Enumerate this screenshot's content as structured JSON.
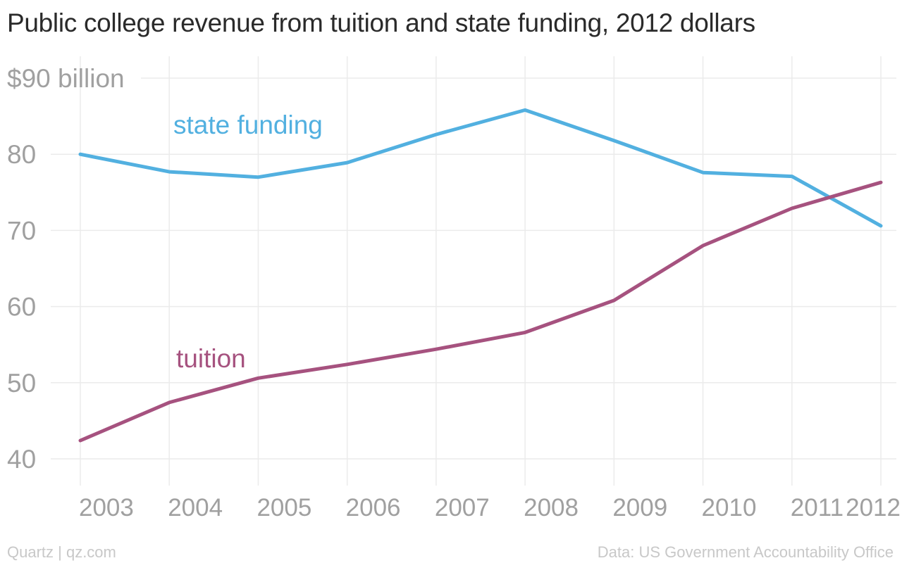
{
  "chart_data": {
    "type": "line",
    "title": "Public college revenue from tuition and state funding, 2012 dollars",
    "x": [
      "2003",
      "2004",
      "2005",
      "2006",
      "2007",
      "2008",
      "2009",
      "2010",
      "2011",
      "2012"
    ],
    "y_ticks": [
      "$90 billion",
      "80",
      "70",
      "60",
      "50",
      "40"
    ],
    "y_tick_values": [
      90,
      80,
      70,
      60,
      50,
      40
    ],
    "ylim": [
      40,
      90
    ],
    "grid": true,
    "series": [
      {
        "name": "state funding",
        "color": "#52b0e0",
        "values": [
          80.0,
          77.7,
          77.0,
          78.9,
          82.6,
          85.8,
          81.8,
          77.6,
          77.1,
          70.6
        ]
      },
      {
        "name": "tuition",
        "color": "#a6527f",
        "values": [
          42.4,
          47.4,
          50.6,
          52.4,
          54.4,
          56.6,
          60.8,
          68.0,
          72.9,
          76.3
        ]
      }
    ]
  },
  "footer": {
    "source_left": "Quartz | qz.com",
    "source_right": "Data: US Government Accountability Office"
  }
}
